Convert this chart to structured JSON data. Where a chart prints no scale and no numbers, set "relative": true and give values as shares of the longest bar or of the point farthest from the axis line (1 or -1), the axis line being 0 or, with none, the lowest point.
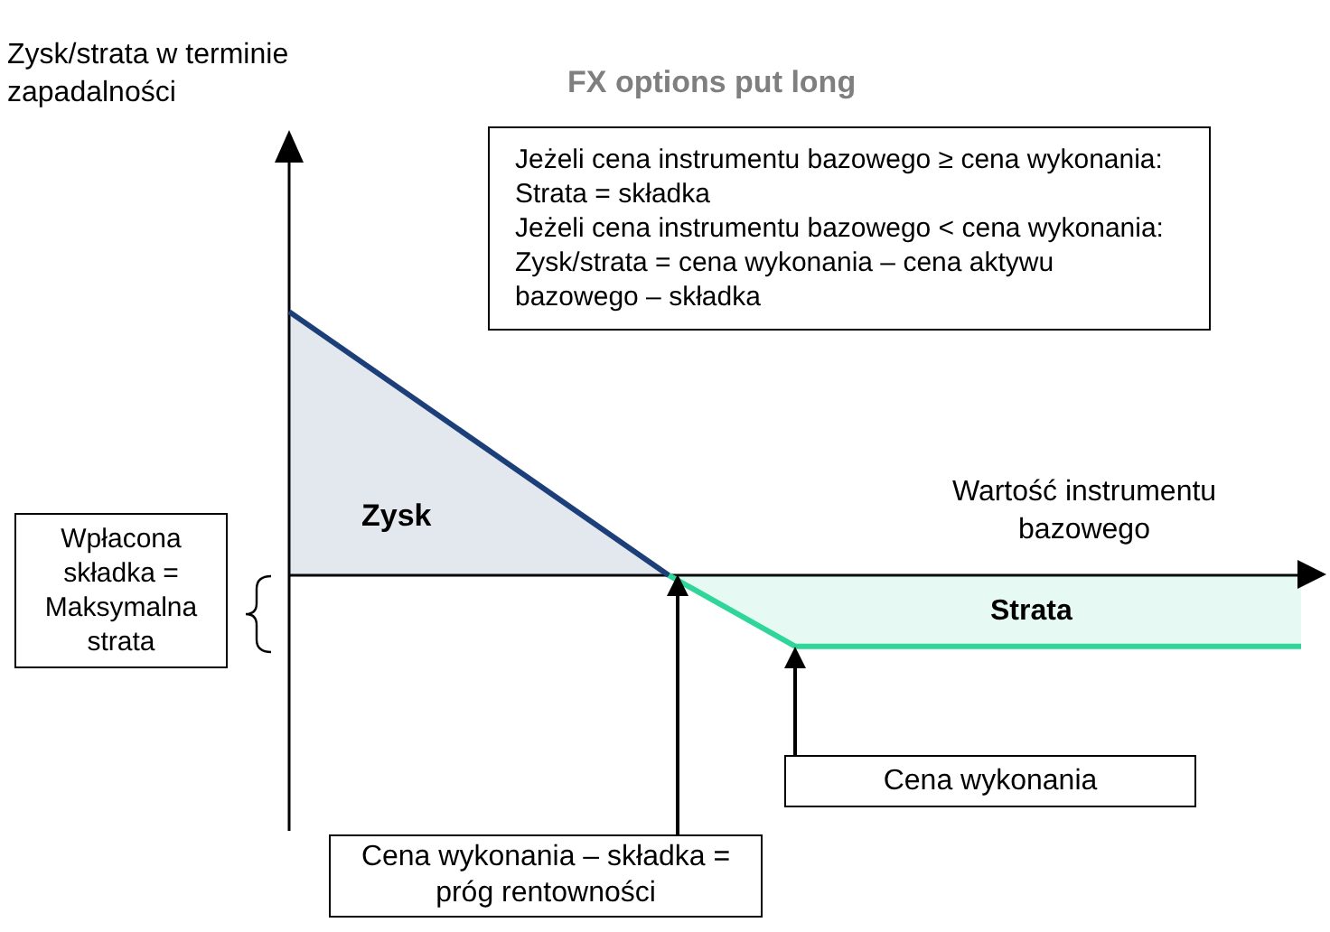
{
  "chart_data": {
    "type": "area",
    "title": "FX options put long",
    "xlabel": "Wartość instrumentu bazowego",
    "relative": true,
    "legend": false,
    "categories": [
      null,
      null,
      null,
      null,
      null,
      null,
      null,
      null,
      null
    ],
    "series": [
      {
        "color": "#1c3f7a",
        "values": [
          1,
          null,
          null,
          0,
          null,
          null,
          null,
          null,
          null
        ]
      },
      {
        "color": "#2fd69a",
        "values": [
          null,
          null,
          null,
          0,
          -0.27,
          null,
          null,
          null,
          -0.27
        ]
      }
    ],
    "annotations": [
      "Jeżeli cena instrumentu bazowego ≥ cena wykonania: Strata = składka",
      "Jeżeli cena instrumentu bazowego < cena wykonania: Zysk/strata = cena wykonania – cena aktywu bazowego – składka",
      "Zysk",
      "Strata",
      "Wpłacona składka = Maksymalna strata",
      "Cena wykonania",
      "Cena wykonania – składka = próg rentowności",
      "Zysk/strata w terminie zapadalności"
    ]
  }
}
